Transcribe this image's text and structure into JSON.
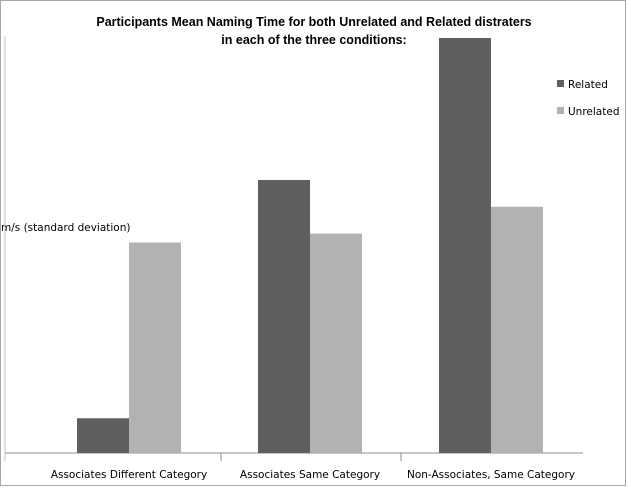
{
  "chart_data": {
    "type": "bar",
    "title": "Participants Mean Naming Time for both Unrelated and Related distraters",
    "subtitle": "in each  of the three conditions:",
    "ylabel": "m/s (standard deviation)",
    "xlabel": "",
    "categories": [
      "Associates Different Category",
      "Associates Same Category",
      "Non-Associates, Same Category"
    ],
    "series": [
      {
        "name": "Related",
        "color": "#5f5f5f",
        "values": [
          35,
          275,
          418
        ]
      },
      {
        "name": "Unrelated",
        "color": "#b2b2b2",
        "values": [
          212,
          221,
          248
        ]
      }
    ],
    "ylim": [
      0,
      420
    ],
    "grid": false,
    "legend": "top-right"
  }
}
